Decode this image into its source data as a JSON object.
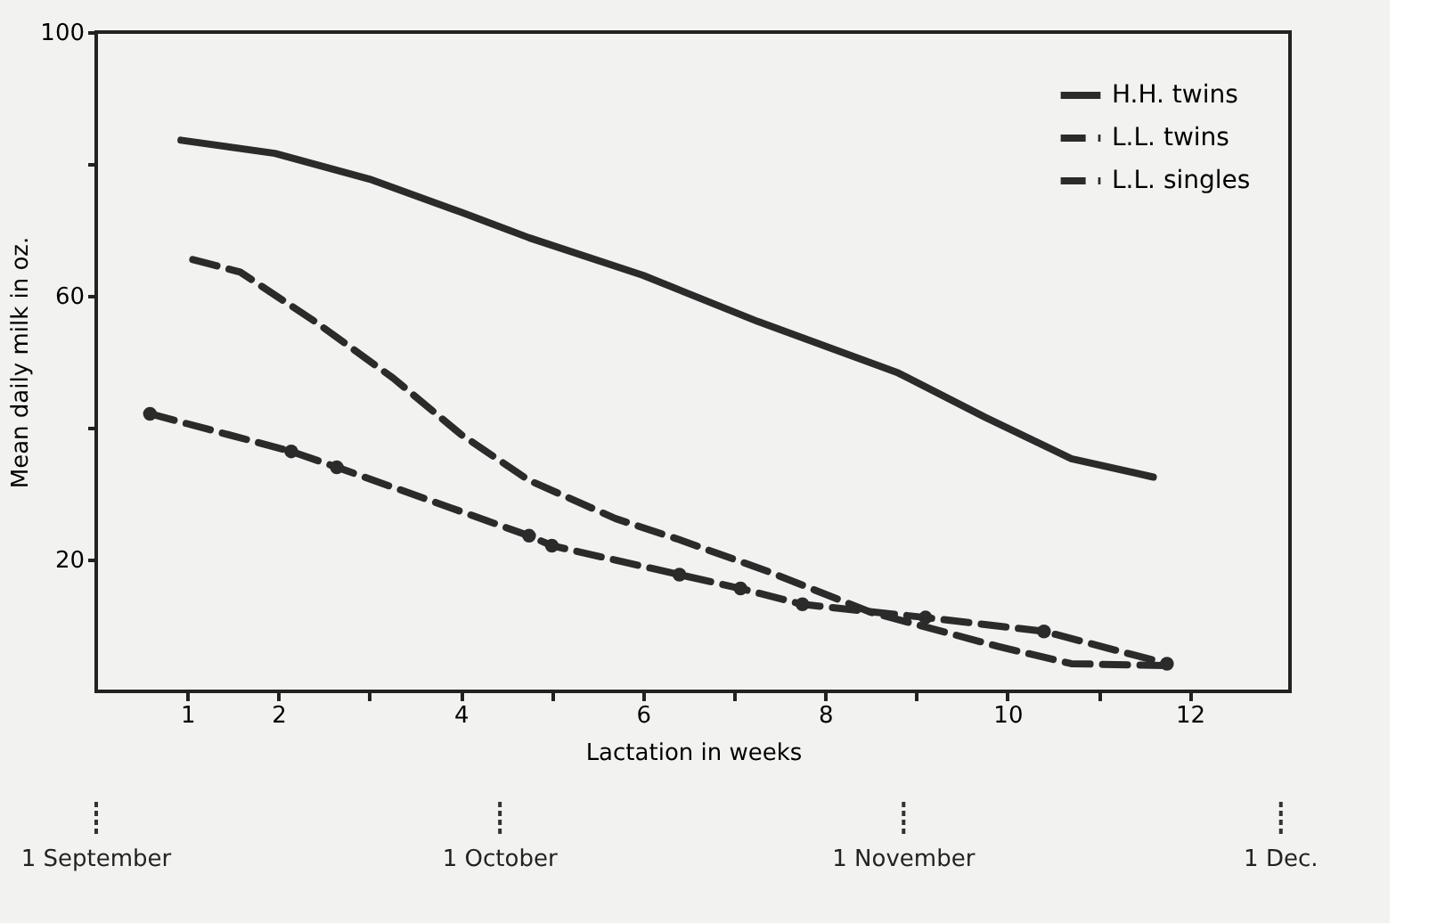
{
  "chart_data": {
    "type": "line",
    "xlabel": "Lactation in weeks",
    "ylabel": "Mean daily milk in oz.",
    "xlim": [
      0,
      13.1
    ],
    "xticks": [
      1,
      2,
      {
        "value": 3,
        "label": null
      },
      4,
      {
        "value": 5,
        "label": null
      },
      6,
      {
        "value": 7,
        "label": null
      },
      8,
      {
        "value": 9,
        "label": null
      },
      10,
      {
        "value": 11,
        "label": null
      },
      12
    ],
    "ylim": [
      0,
      100
    ],
    "yticks": [
      20,
      {
        "value": 40,
        "label": null
      },
      60,
      {
        "value": 80,
        "label": null
      },
      100
    ],
    "ref_lines": [
      {
        "axis": "x",
        "value": 0,
        "label": "1 September",
        "line_style": "dotted"
      },
      {
        "axis": "x",
        "value": 4.43,
        "label": "1 October",
        "line_style": "dotted"
      },
      {
        "axis": "x",
        "value": 8.86,
        "label": "1 November",
        "line_style": "dotted"
      },
      {
        "axis": "x",
        "value": 13.0,
        "label": "1 Dec.",
        "line_style": "dotted"
      }
    ],
    "grid": false,
    "legend": "top right",
    "series": [
      {
        "name": "H.H. twins",
        "color": "#2b2b2b",
        "line_style": "solid",
        "x": [
          0.93,
          1.96,
          3.0,
          4.0,
          4.75,
          6.0,
          7.26,
          8.8,
          9.75,
          10.7,
          11.6
        ],
        "values": [
          83.6,
          81.6,
          77.7,
          72.7,
          68.8,
          63.1,
          56.1,
          48.3,
          41.6,
          35.3,
          32.5
        ]
      },
      {
        "name": "L.L. twins",
        "color": "#2b2b2b",
        "line_style": "dashed",
        "x": [
          1.06,
          1.58,
          2.4,
          3.26,
          4.0,
          4.75,
          5.7,
          6.4,
          7.37,
          8.5,
          9.9,
          10.7,
          11.75
        ],
        "values": [
          65.5,
          63.6,
          56.1,
          47.5,
          39.0,
          32.0,
          26.2,
          23.0,
          18.2,
          12.0,
          6.8,
          4.2,
          3.9
        ]
      },
      {
        "name": "L.L. singles",
        "color": "#2b2b2b",
        "line_style": "dashed",
        "marker": "circle",
        "x": [
          0.59,
          2.14,
          2.64,
          4.75,
          5.0,
          6.4,
          7.07,
          7.75,
          9.1,
          10.4,
          11.75
        ],
        "values": [
          42.1,
          36.4,
          34.0,
          23.6,
          22.1,
          17.7,
          15.6,
          13.2,
          11.2,
          9.1,
          4.2
        ]
      }
    ]
  }
}
